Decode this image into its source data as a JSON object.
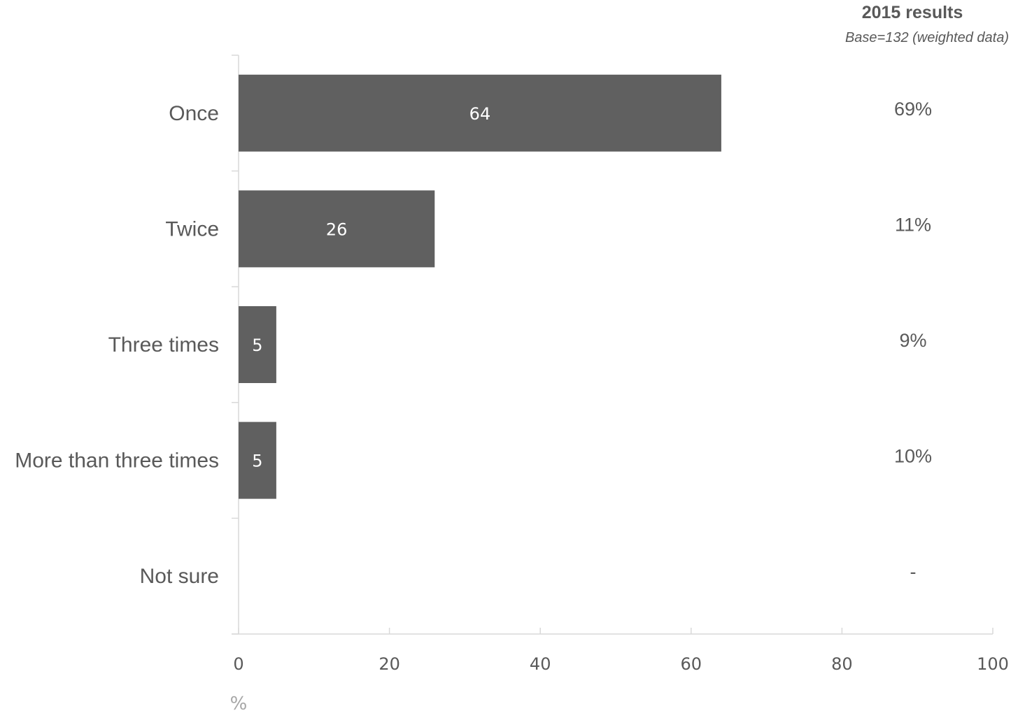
{
  "chart_data": {
    "type": "bar",
    "orientation": "horizontal",
    "categories": [
      "Once",
      "Twice",
      "Three times",
      "More than three times",
      "Not sure"
    ],
    "values": [
      64,
      26,
      5,
      5,
      null
    ],
    "data_labels": [
      "64",
      "26",
      "5",
      "5",
      ""
    ],
    "xlabel": "%",
    "xlim": [
      0,
      100
    ],
    "x_ticks": [
      "0",
      "20",
      "40",
      "60",
      "80",
      "100"
    ],
    "grid": false,
    "bar_color": "#606060",
    "side_panel": {
      "title": "2015 results",
      "subtitle": "Base=132 (weighted data)",
      "values": [
        "69%",
        "11%",
        "9%",
        "10%",
        "-"
      ]
    }
  }
}
